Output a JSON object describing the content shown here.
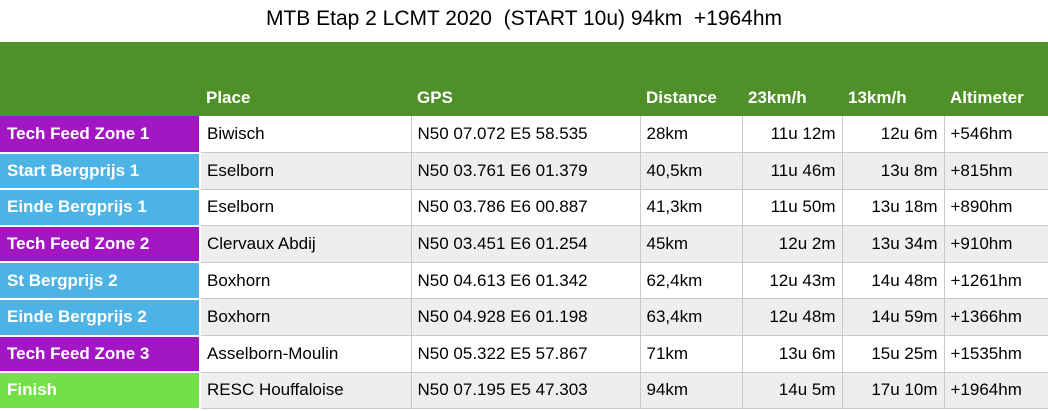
{
  "title": "MTB Etap 2 LCMT 2020  (START 10u) 94km  +1964hm",
  "colors": {
    "header_green": "#4f9128",
    "feed_zone": "#a316c4",
    "bergprijs": "#4db2e4",
    "finish": "#73e04a"
  },
  "table": {
    "headers": [
      "",
      "Place",
      "GPS",
      "Distance",
      "23km/h",
      "13km/h",
      "Altimeter"
    ],
    "rows": [
      {
        "label": "Tech Feed Zone 1",
        "type": "feed_zone",
        "place": "Biwisch",
        "gps": "N50 07.072 E5 58.535",
        "distance": "28km",
        "t23": "11u 12m",
        "t13": "12u 6m",
        "alt": "+546hm"
      },
      {
        "label": "Start Bergprijs 1",
        "type": "bergprijs",
        "place": "Eselborn",
        "gps": "N50 03.761 E6 01.379",
        "distance": "40,5km",
        "t23": "11u 46m",
        "t13": "13u 8m",
        "alt": "+815hm"
      },
      {
        "label": "Einde Bergprijs 1",
        "type": "bergprijs",
        "place": "Eselborn",
        "gps": "N50 03.786 E6 00.887",
        "distance": "41,3km",
        "t23": "11u 50m",
        "t13": "13u 18m",
        "alt": "+890hm"
      },
      {
        "label": "Tech Feed Zone 2",
        "type": "feed_zone",
        "place": "Clervaux Abdij",
        "gps": "N50 03.451 E6 01.254",
        "distance": "45km",
        "t23": "12u 2m",
        "t13": "13u 34m",
        "alt": "+910hm"
      },
      {
        "label": "St Bergprijs 2",
        "type": "bergprijs",
        "place": "Boxhorn",
        "gps": "N50 04.613 E6 01.342",
        "distance": "62,4km",
        "t23": "12u 43m",
        "t13": "14u 48m",
        "alt": "+1261hm"
      },
      {
        "label": "Einde Bergprijs 2",
        "type": "bergprijs",
        "place": "Boxhorn",
        "gps": "N50 04.928 E6 01.198",
        "distance": "63,4km",
        "t23": "12u 48m",
        "t13": "14u 59m",
        "alt": "+1366hm"
      },
      {
        "label": "Tech Feed Zone 3",
        "type": "feed_zone",
        "place": "Asselborn-Moulin",
        "gps": "N50 05.322 E5 57.867",
        "distance": "71km",
        "t23": "13u 6m",
        "t13": "15u 25m",
        "alt": "+1535hm"
      },
      {
        "label": "Finish",
        "type": "finish",
        "place": "RESC Houffaloise",
        "gps": "N50 07.195 E5 47.303",
        "distance": "94km",
        "t23": "14u 5m",
        "t13": "17u 10m",
        "alt": "+1964hm"
      }
    ]
  }
}
